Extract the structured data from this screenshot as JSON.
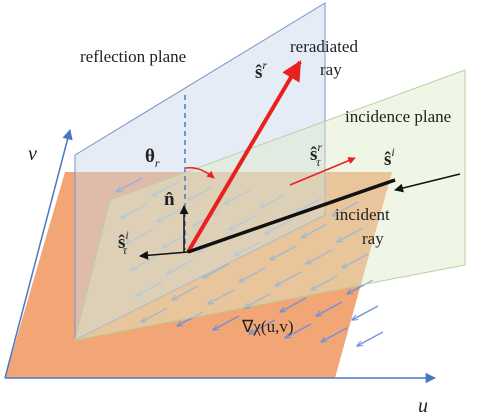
{
  "labels": {
    "reflection_plane": "reflection plane",
    "reradiated": "reradiated",
    "reradiated_ray": "ray",
    "incidence_plane": "incidence plane",
    "incident": "incident",
    "incident_ray": "ray",
    "gradient": "∇χ(u,v)",
    "u": "u",
    "v": "v"
  },
  "vectors": {
    "s_r": {
      "base": "ŝ",
      "sup": "r"
    },
    "s_r_tau": {
      "base": "ŝ",
      "sup": "r",
      "sub": "τ"
    },
    "s_i": {
      "base": "ŝ",
      "sup": "i"
    },
    "s_i_tau": {
      "base": "ŝ",
      "sup": "i",
      "sub": "τ"
    },
    "n": {
      "base": "n̂"
    },
    "theta": {
      "base": "θ",
      "sub": "r"
    }
  }
}
